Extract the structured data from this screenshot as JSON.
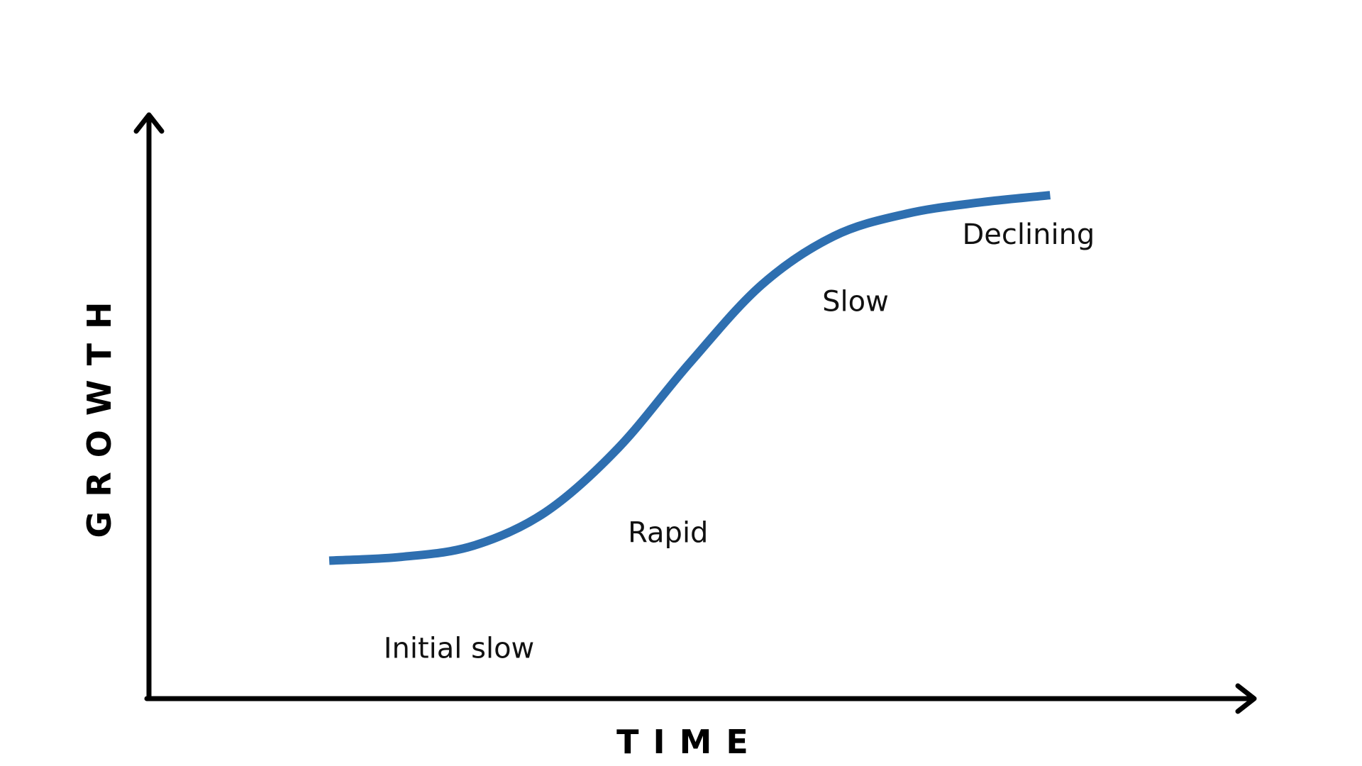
{
  "chart_data": {
    "type": "line",
    "title": "",
    "xlabel": "TIME",
    "ylabel": "GROWTH",
    "grid": false,
    "legend": "none",
    "axis_ticks": false,
    "series": [
      {
        "color": "#2e6fb0",
        "x": [
          0,
          1,
          2,
          3,
          4,
          5,
          6,
          7,
          8,
          9,
          10
        ],
        "y": [
          2,
          3,
          6,
          15,
          32,
          55,
          76,
          89,
          95,
          98,
          100
        ]
      }
    ],
    "annotations": [
      {
        "text": "Initial slow",
        "x": 1.8,
        "y": -22
      },
      {
        "text": "Rapid",
        "x": 4.7,
        "y": 9
      },
      {
        "text": "Slow",
        "x": 7.3,
        "y": 71
      },
      {
        "text": "Declining",
        "x": 9.7,
        "y": 89
      }
    ],
    "xlim": [
      -2.5,
      12.8
    ],
    "ylim": [
      -35,
      120
    ]
  }
}
